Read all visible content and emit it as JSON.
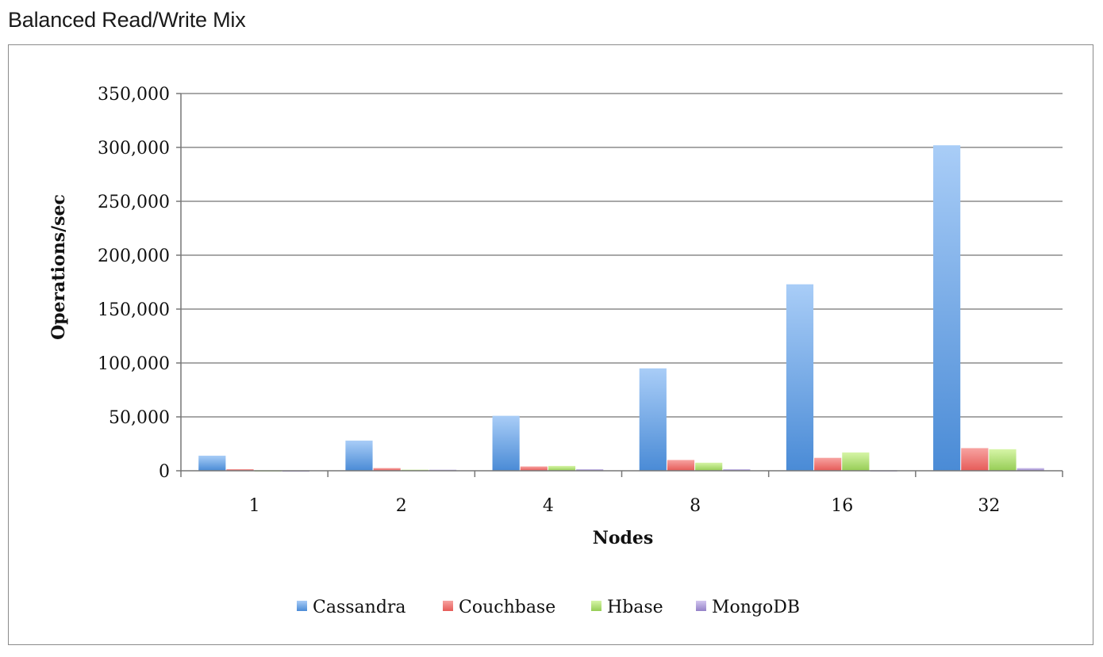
{
  "page": {
    "title": "Balanced Read/Write Mix"
  },
  "chart_data": {
    "type": "bar",
    "title": "Balanced Read/Write Mix",
    "xlabel": "Nodes",
    "ylabel": "Operations/sec",
    "categories": [
      "1",
      "2",
      "4",
      "8",
      "16",
      "32"
    ],
    "ylim": [
      0,
      350000
    ],
    "yticks": [
      0,
      50000,
      100000,
      150000,
      200000,
      250000,
      300000,
      350000
    ],
    "ytick_labels": [
      "0",
      "50,000",
      "100,000",
      "150,000",
      "200,000",
      "250,000",
      "300,000",
      "350,000"
    ],
    "grid": true,
    "legend_position": "bottom",
    "series": [
      {
        "name": "Cassandra",
        "values": [
          14000,
          28000,
          51000,
          95000,
          173000,
          302000
        ],
        "color": "#5b9bd5",
        "color_light": "#a9cdf7",
        "color_dark": "#4a8bd6"
      },
      {
        "name": "Couchbase",
        "values": [
          1500,
          2500,
          4000,
          10000,
          12000,
          21000
        ],
        "color": "#ec6d6b",
        "color_light": "#f7a3a1",
        "color_dark": "#e65b58"
      },
      {
        "name": "Hbase",
        "values": [
          500,
          1000,
          4500,
          7500,
          17000,
          20000
        ],
        "color": "#a8d86b",
        "color_light": "#d6f5a7",
        "color_dark": "#96cd55"
      },
      {
        "name": "MongoDB",
        "values": [
          300,
          1000,
          1500,
          1500,
          500,
          2500
        ],
        "color": "#a894d3",
        "color_light": "#d2c6ef",
        "color_dark": "#9481c7"
      }
    ]
  }
}
